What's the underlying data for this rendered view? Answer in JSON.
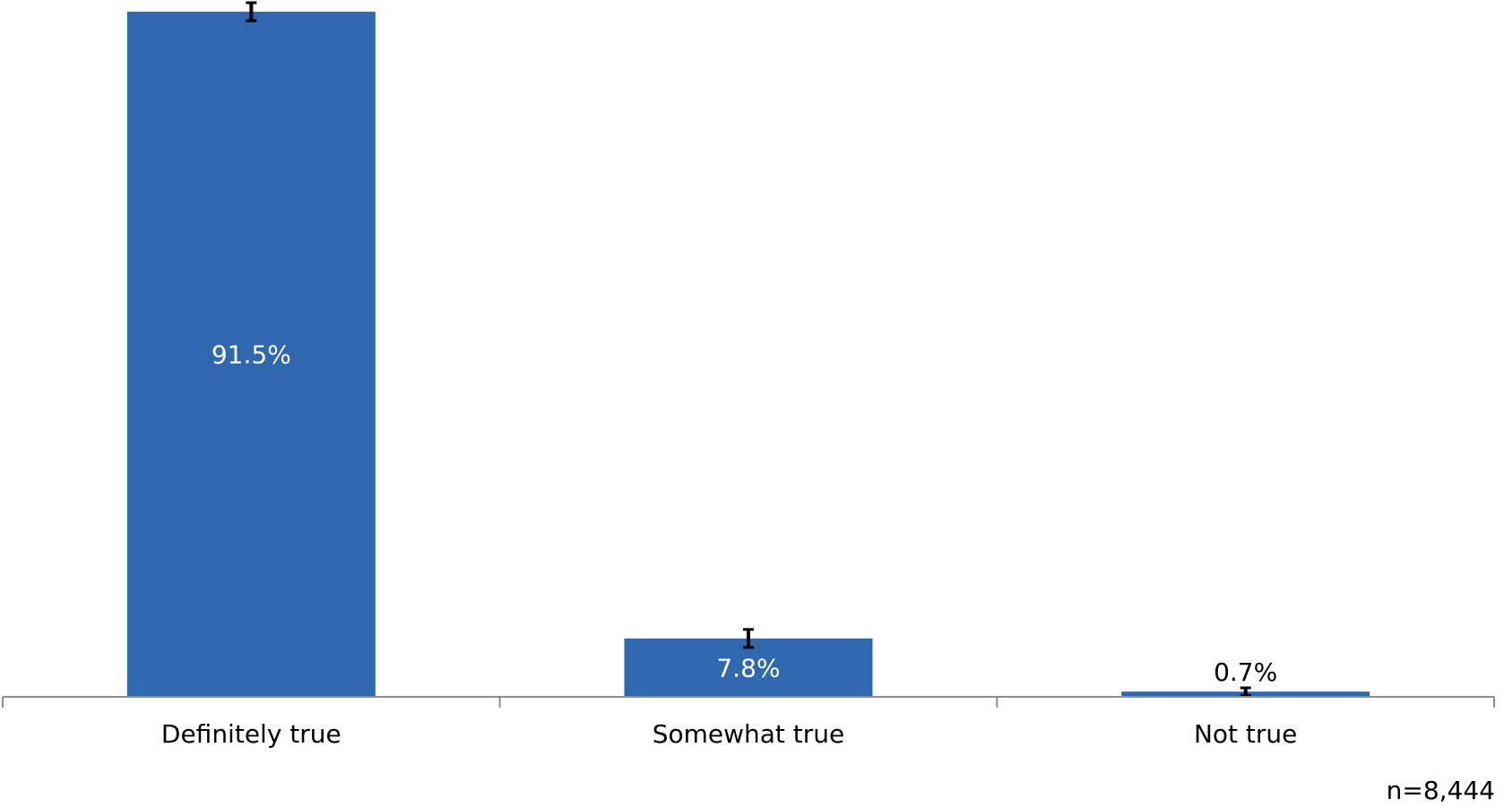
{
  "chart_data": {
    "type": "bar",
    "categories": [
      "Definitely true",
      "Somewhat true",
      "Not true"
    ],
    "values": [
      91.5,
      7.8,
      0.7
    ],
    "value_labels": [
      "91.5%",
      "7.8%",
      "0.7%"
    ],
    "error_bars": [
      1.2,
      1.2,
      0.5
    ],
    "ylim": [
      0,
      100
    ],
    "grid": false,
    "legend": "none",
    "title": "",
    "xlabel": "",
    "ylabel": "",
    "bar_color": "#3068B0",
    "note": "n=8,444"
  }
}
